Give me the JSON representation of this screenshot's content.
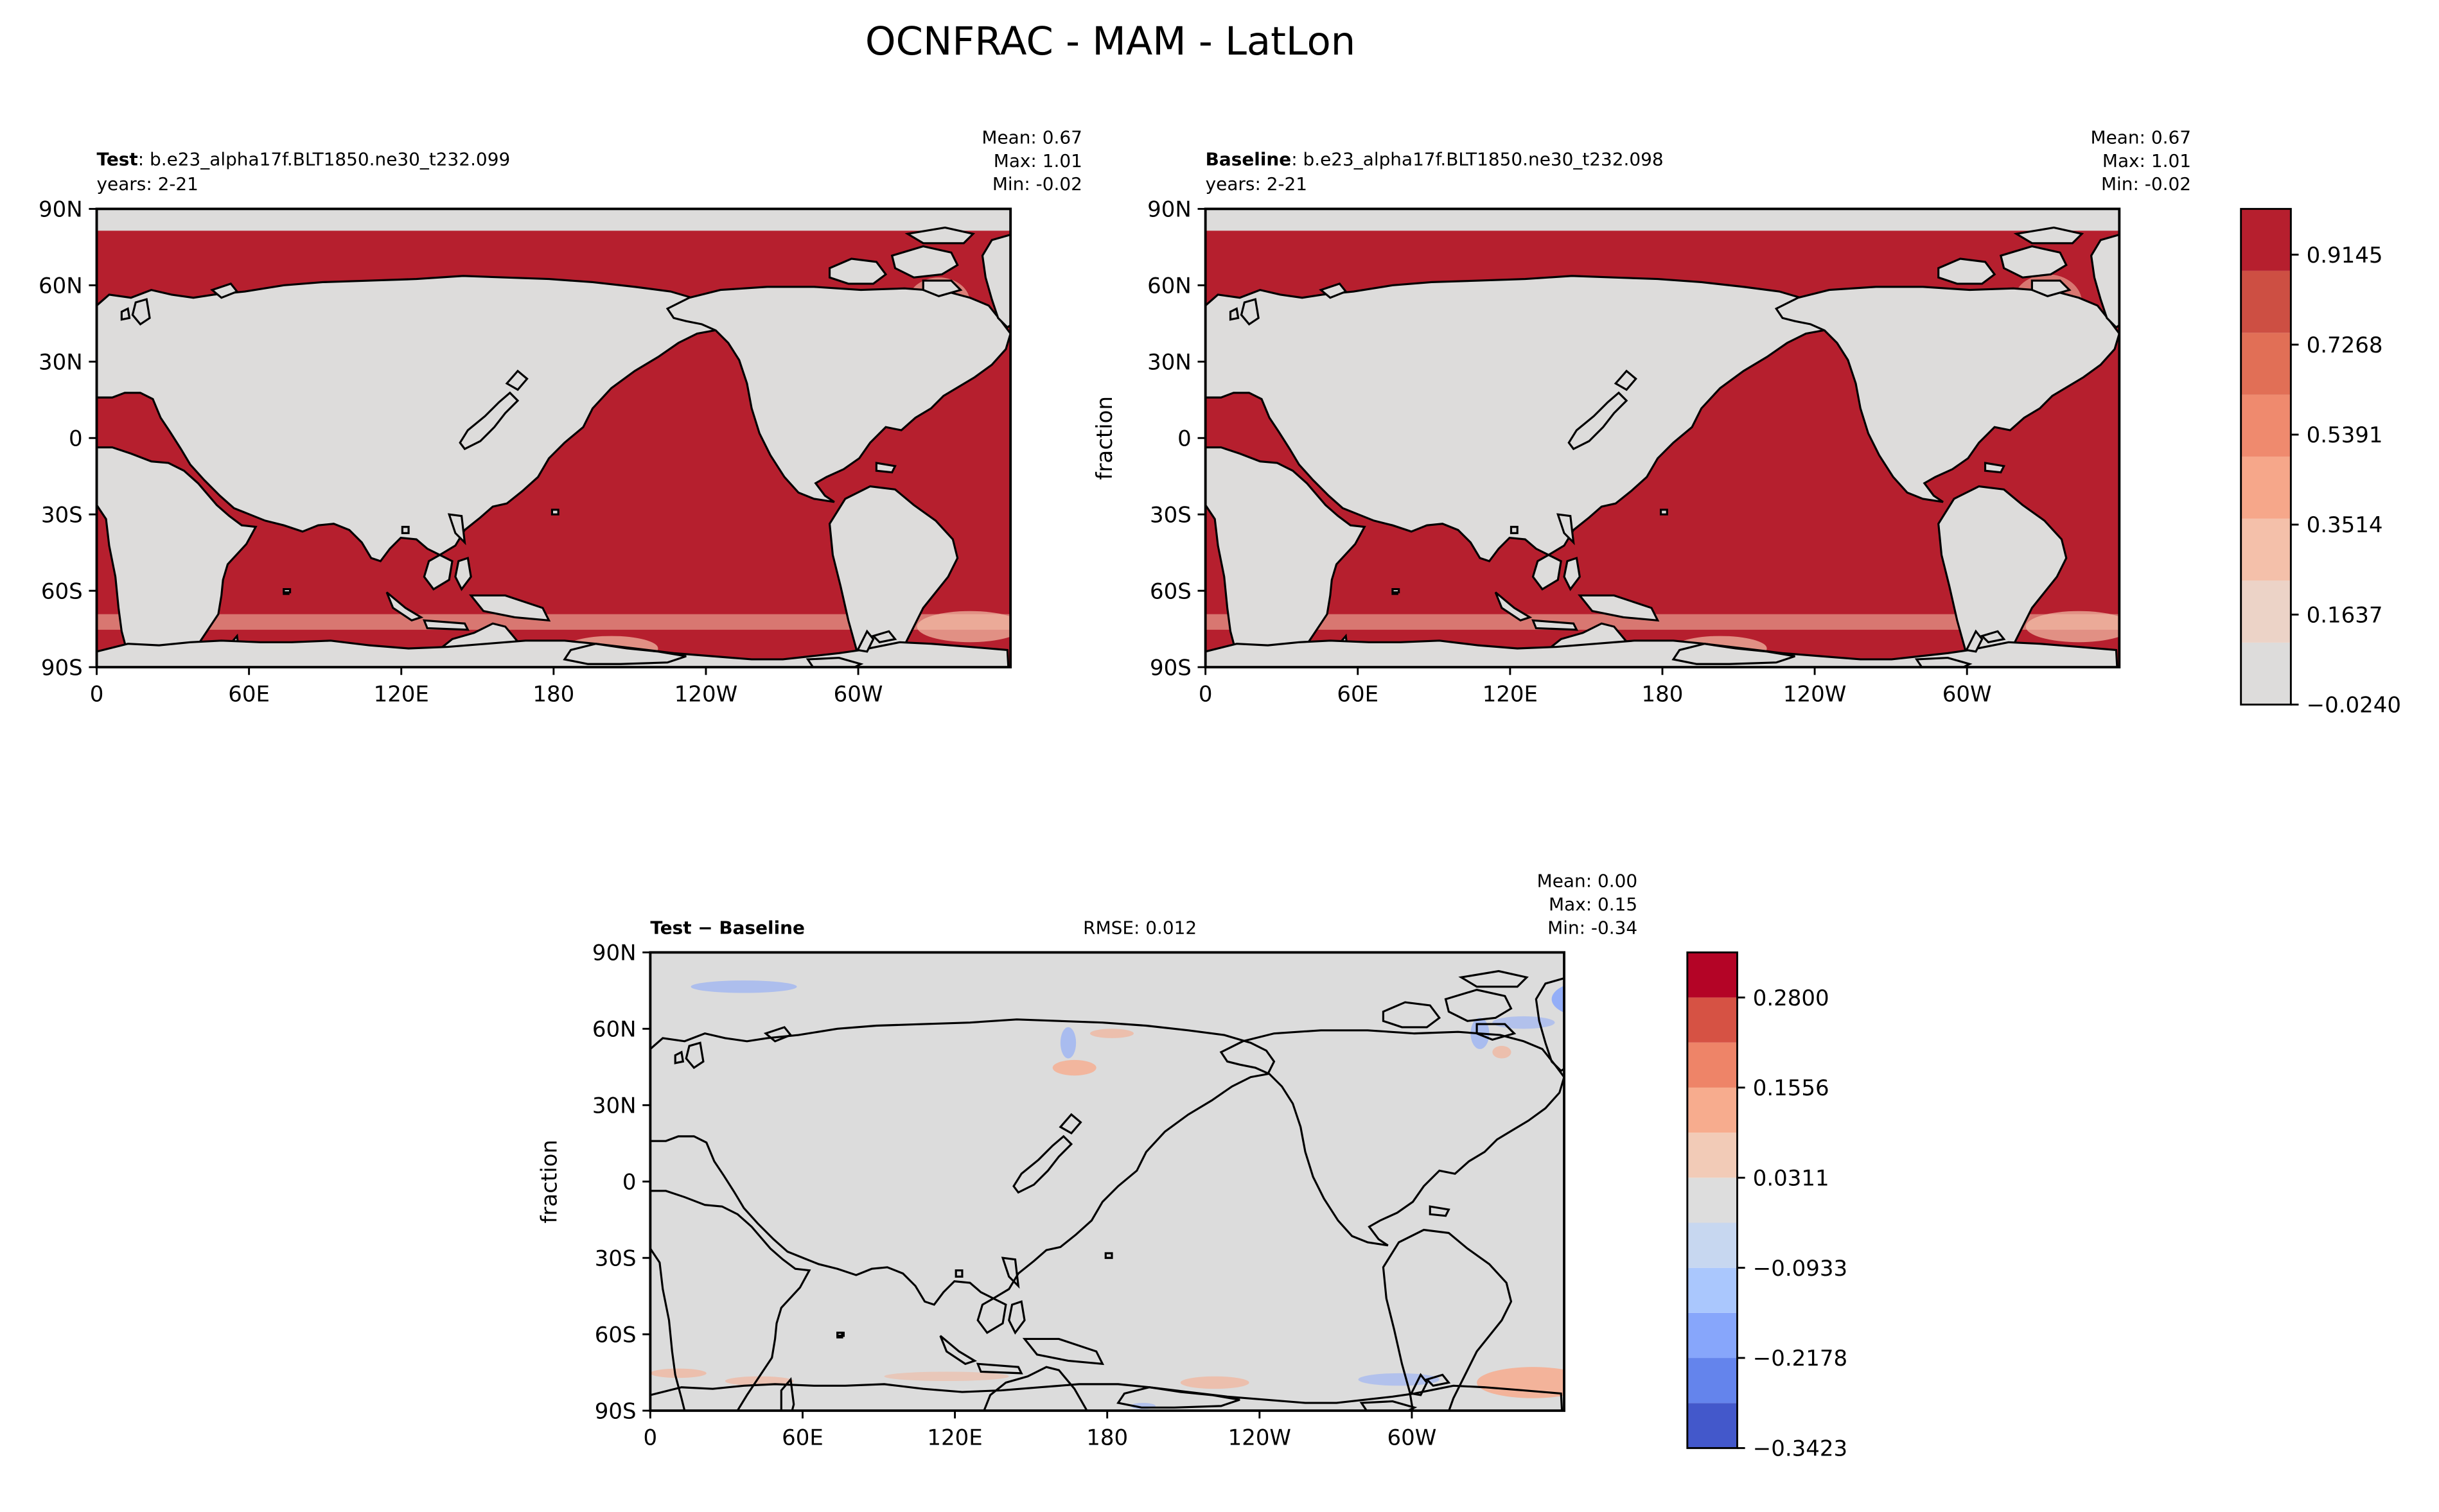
{
  "figure": {
    "title": "OCNFRAC - MAM - LatLon"
  },
  "colors": {
    "ocean": "#b61f2e",
    "land": "#dddcdb",
    "diff_bg": "#dcdcdc",
    "seq_cmap": [
      "#dddcdb",
      "#ecd3c7",
      "#f4c0aa",
      "#f6a78a",
      "#ef8a6e",
      "#e16f56",
      "#cd4f43",
      "#b61f2e"
    ],
    "div_cmap": [
      "#4358cb",
      "#6484ec",
      "#87a6fb",
      "#aac7fd",
      "#c7d7f0",
      "#dddddd",
      "#f2cbb7",
      "#f7ac8e",
      "#ee8468",
      "#d65244",
      "#b40426"
    ]
  },
  "panels": [
    {
      "id": "test",
      "name_bold": "Test",
      "name_rest": ": b.e23_alpha17f.BLT1850.ne30_t232.099",
      "years": "years: 2-21",
      "stats": [
        "Mean:  0.67",
        "Max:  1.01",
        "Min: -0.02"
      ],
      "ylabel": ""
    },
    {
      "id": "baseline",
      "name_bold": "Baseline",
      "name_rest": ": b.e23_alpha17f.BLT1850.ne30_t232.098",
      "years": "years: 2-21",
      "stats": [
        "Mean:  0.67",
        "Max:  1.01",
        "Min: -0.02"
      ],
      "ylabel": "fraction"
    },
    {
      "id": "diff",
      "name_bold": "Test",
      "name_rest": " − Baseline",
      "rmse": "RMSE: 0.012",
      "stats": [
        "Mean:  0.00",
        "Max:  0.15",
        "Min: -0.34"
      ],
      "ylabel": "fraction"
    }
  ],
  "chart_data": [
    {
      "type": "heatmap",
      "title": "Test",
      "variable": "OCNFRAC",
      "x_range": [
        0,
        360
      ],
      "y_range": [
        -90,
        90
      ],
      "xticks": [
        "0",
        "60E",
        "120E",
        "180",
        "120W",
        "60W"
      ],
      "xtick_values": [
        0,
        60,
        120,
        180,
        240,
        300
      ],
      "yticks": [
        "90N",
        "60N",
        "30N",
        "0",
        "30S",
        "60S",
        "90S"
      ],
      "ytick_values": [
        90,
        60,
        30,
        0,
        -30,
        -60,
        -90
      ],
      "stats": {
        "mean": 0.67,
        "max": 1.01,
        "min": -0.02
      }
    },
    {
      "type": "heatmap",
      "title": "Baseline",
      "variable": "OCNFRAC",
      "x_range": [
        0,
        360
      ],
      "y_range": [
        -90,
        90
      ],
      "xticks": [
        "0",
        "60E",
        "120E",
        "180",
        "120W",
        "60W"
      ],
      "xtick_values": [
        0,
        60,
        120,
        180,
        240,
        300
      ],
      "yticks": [
        "90N",
        "60N",
        "30N",
        "0",
        "30S",
        "60S",
        "90S"
      ],
      "ytick_values": [
        90,
        60,
        30,
        0,
        -30,
        -60,
        -90
      ],
      "ylabel": "fraction",
      "colorbar": {
        "range": [
          -0.024,
          1.01
        ],
        "tick_labels": [
          "0.9145",
          "0.7268",
          "0.5391",
          "0.3514",
          "0.1637",
          "−0.0240"
        ],
        "tick_values": [
          0.9145,
          0.7268,
          0.5391,
          0.3514,
          0.1637,
          -0.024
        ]
      },
      "stats": {
        "mean": 0.67,
        "max": 1.01,
        "min": -0.02
      }
    },
    {
      "type": "heatmap",
      "title": "Test − Baseline",
      "variable": "OCNFRAC",
      "x_range": [
        0,
        360
      ],
      "y_range": [
        -90,
        90
      ],
      "xticks": [
        "0",
        "60E",
        "120E",
        "180",
        "120W",
        "60W"
      ],
      "xtick_values": [
        0,
        60,
        120,
        180,
        240,
        300
      ],
      "yticks": [
        "90N",
        "60N",
        "30N",
        "0",
        "30S",
        "60S",
        "90S"
      ],
      "ytick_values": [
        90,
        60,
        30,
        0,
        -30,
        -60,
        -90
      ],
      "ylabel": "fraction",
      "colorbar": {
        "range": [
          -0.3423,
          0.3423
        ],
        "tick_labels": [
          "0.2800",
          "0.1556",
          "0.0311",
          "−0.0933",
          "−0.2178",
          "−0.3423"
        ],
        "tick_values": [
          0.28,
          0.1556,
          0.0311,
          -0.0933,
          -0.2178,
          -0.3423
        ]
      },
      "stats": {
        "mean": 0.0,
        "max": 0.15,
        "min": -0.34,
        "rmse": 0.012
      }
    }
  ]
}
